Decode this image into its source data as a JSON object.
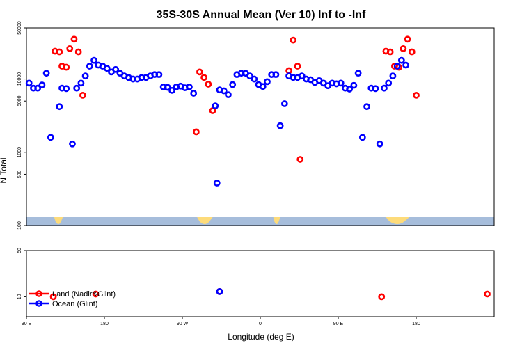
{
  "chart_data": {
    "type": "scatter",
    "title": "35S-30S Annual Mean (Ver 10)   Inf to -Inf",
    "xlabel": "Longitude (deg E)",
    "ylabel": "N Total",
    "ylog": true,
    "xlim": [
      90,
      630
    ],
    "xticks": [
      {
        "value": 90,
        "label": "90 E"
      },
      {
        "value": 180,
        "label": "180"
      },
      {
        "value": 270,
        "label": "90 W"
      },
      {
        "value": 360,
        "label": "0"
      },
      {
        "value": 450,
        "label": "90 E"
      },
      {
        "value": 540,
        "label": "180"
      }
    ],
    "upper_panel": {
      "ylim": [
        100,
        50000
      ],
      "yticks": [
        {
          "value": 50000,
          "label": "50000"
        },
        {
          "value": 10000,
          "label": "10000"
        },
        {
          "value": 5000,
          "label": "5000"
        },
        {
          "value": 1000,
          "label": "1000"
        },
        {
          "value": 500,
          "label": "500"
        },
        {
          "value": 100,
          "label": "100"
        }
      ]
    },
    "lower_panel": {
      "ylim": [
        5,
        50
      ],
      "yticks": [
        {
          "value": 50,
          "label": "50"
        },
        {
          "value": 10,
          "label": "10"
        }
      ]
    },
    "legend": {
      "placement": "bottom-left",
      "entries": [
        "Land (Nadir&Glint)",
        "Ocean (Glint)"
      ]
    },
    "series": [
      {
        "name": "Land (Nadir&Glint)",
        "color": "#ff0000",
        "points": [
          [
            121,
            10
          ],
          [
            123,
            24000
          ],
          [
            128,
            23500
          ],
          [
            131,
            15000
          ],
          [
            136,
            14500
          ],
          [
            140,
            26000
          ],
          [
            145,
            35000
          ],
          [
            150,
            23500
          ],
          [
            155,
            6000
          ],
          [
            170,
            11
          ],
          [
            286,
            1900
          ],
          [
            290,
            12500
          ],
          [
            295,
            10500
          ],
          [
            300,
            8500
          ],
          [
            305,
            3700
          ],
          [
            313,
            12
          ],
          [
            393,
            13000
          ],
          [
            398,
            34000
          ],
          [
            403,
            15000
          ],
          [
            406,
            800
          ],
          [
            500,
            10
          ],
          [
            505,
            24000
          ],
          [
            510,
            23500
          ],
          [
            515,
            15000
          ],
          [
            520,
            14500
          ],
          [
            525,
            26000
          ],
          [
            530,
            35000
          ],
          [
            535,
            23500
          ],
          [
            540,
            6000
          ],
          [
            622,
            11
          ]
        ]
      },
      {
        "name": "Ocean (Glint)",
        "color": "#0000ff",
        "points": [
          [
            93,
            8800
          ],
          [
            98,
            7500
          ],
          [
            103,
            7500
          ],
          [
            108,
            8300
          ],
          [
            113,
            12000
          ],
          [
            118,
            1600
          ],
          [
            128,
            4200
          ],
          [
            131,
            7500
          ],
          [
            136,
            7400
          ],
          [
            143,
            1300
          ],
          [
            148,
            7500
          ],
          [
            153,
            8800
          ],
          [
            158,
            11000
          ],
          [
            163,
            15000
          ],
          [
            168,
            18000
          ],
          [
            173,
            15500
          ],
          [
            178,
            15000
          ],
          [
            183,
            14000
          ],
          [
            188,
            12500
          ],
          [
            193,
            13500
          ],
          [
            198,
            12000
          ],
          [
            203,
            11000
          ],
          [
            208,
            10500
          ],
          [
            213,
            10000
          ],
          [
            218,
            10000
          ],
          [
            223,
            10500
          ],
          [
            228,
            10500
          ],
          [
            233,
            11000
          ],
          [
            238,
            11500
          ],
          [
            243,
            11500
          ],
          [
            248,
            7800
          ],
          [
            253,
            7700
          ],
          [
            258,
            7000
          ],
          [
            263,
            7800
          ],
          [
            268,
            8000
          ],
          [
            273,
            7600
          ],
          [
            278,
            7800
          ],
          [
            283,
            6400
          ],
          [
            310,
            380
          ],
          [
            313,
            12
          ],
          [
            308,
            4300
          ],
          [
            313,
            7100
          ],
          [
            318,
            6900
          ],
          [
            323,
            6100
          ],
          [
            328,
            8400
          ],
          [
            333,
            11500
          ],
          [
            338,
            12000
          ],
          [
            343,
            12000
          ],
          [
            348,
            11000
          ],
          [
            353,
            10000
          ],
          [
            358,
            8400
          ],
          [
            363,
            7900
          ],
          [
            368,
            9200
          ],
          [
            373,
            11500
          ],
          [
            378,
            11500
          ],
          [
            383,
            2300
          ],
          [
            388,
            4600
          ],
          [
            393,
            11000
          ],
          [
            398,
            10500
          ],
          [
            403,
            10500
          ],
          [
            408,
            11000
          ],
          [
            413,
            10000
          ],
          [
            418,
            9800
          ],
          [
            423,
            9000
          ],
          [
            428,
            9500
          ],
          [
            433,
            8800
          ],
          [
            438,
            8100
          ],
          [
            443,
            8800
          ],
          [
            448,
            8600
          ],
          [
            453,
            8800
          ],
          [
            458,
            7500
          ],
          [
            463,
            7300
          ],
          [
            468,
            8200
          ],
          [
            473,
            12000
          ],
          [
            478,
            1600
          ],
          [
            483,
            4200
          ],
          [
            488,
            7500
          ],
          [
            493,
            7400
          ],
          [
            498,
            1300
          ],
          [
            503,
            7500
          ],
          [
            508,
            8800
          ],
          [
            513,
            11000
          ],
          [
            518,
            15000
          ],
          [
            523,
            18000
          ],
          [
            528,
            15500
          ]
        ]
      }
    ]
  }
}
